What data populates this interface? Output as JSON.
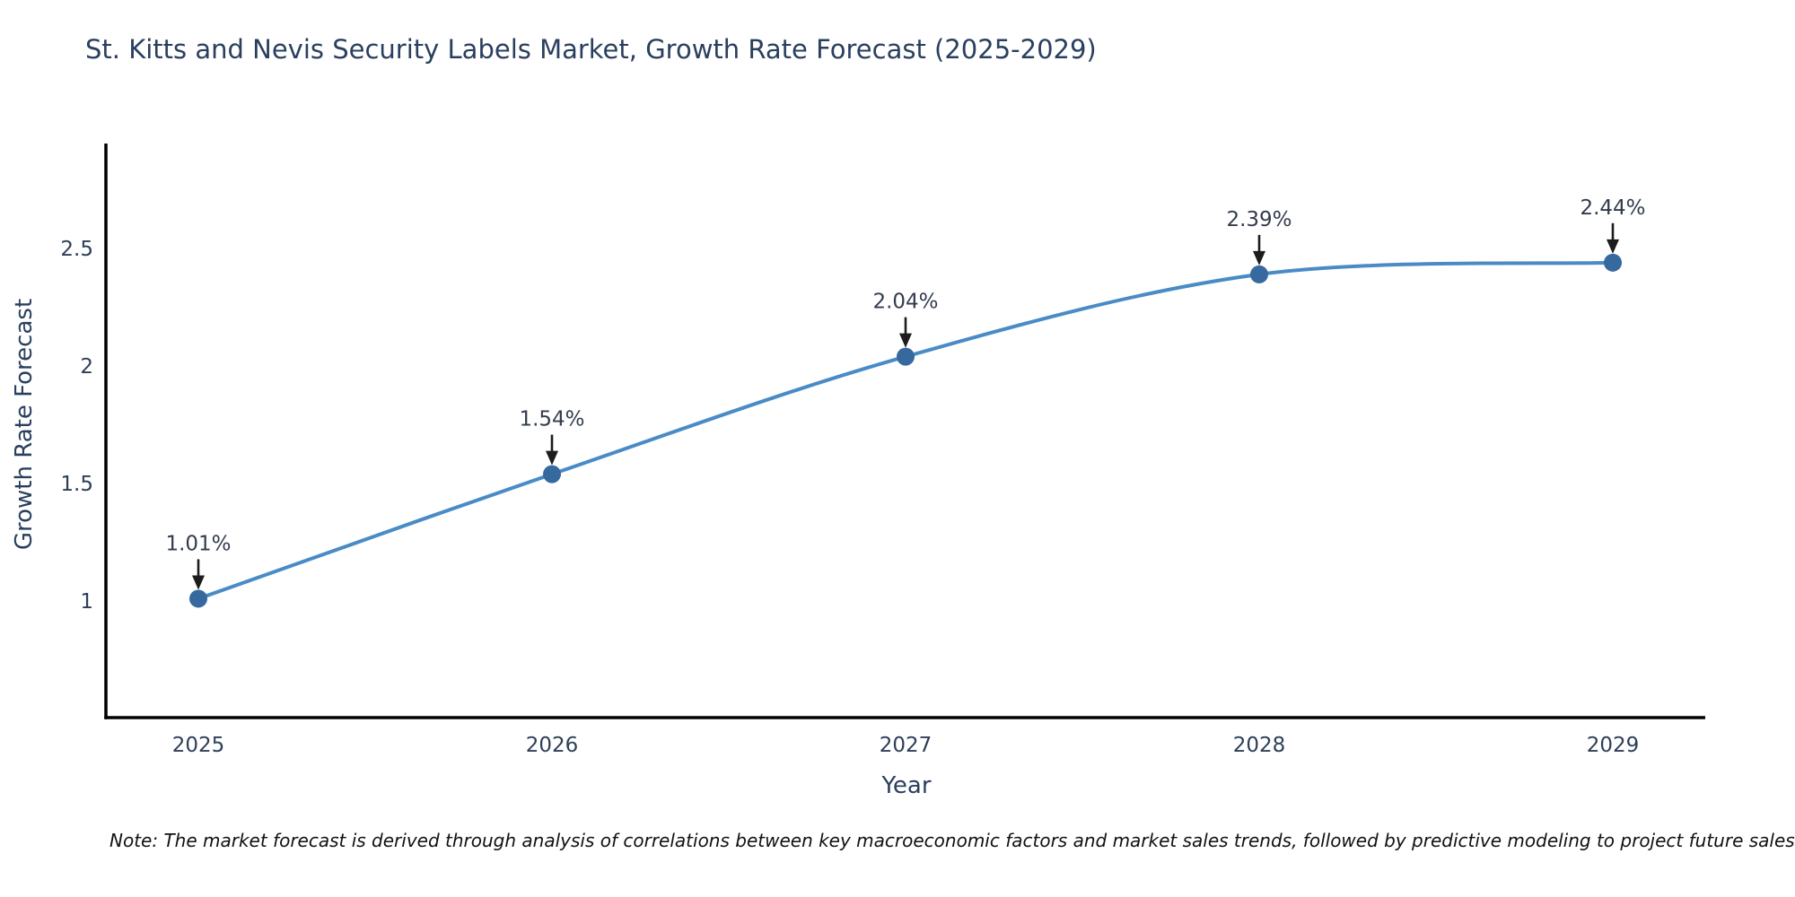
{
  "title": "St. Kitts and Nevis Security Labels Market, Growth Rate Forecast (2025-2029)",
  "note": "Note: The market forecast is derived through analysis of correlations between key macroeconomic factors and market sales trends, followed by predictive modeling to project future sales",
  "chart_data": {
    "type": "line",
    "x": [
      "2025",
      "2026",
      "2027",
      "2028",
      "2029"
    ],
    "series": [
      {
        "name": "Growth Rate Forecast",
        "values": [
          1.01,
          1.54,
          2.04,
          2.39,
          2.44
        ],
        "point_labels": [
          "1.01%",
          "1.54%",
          "2.04%",
          "2.39%",
          "2.44%"
        ]
      }
    ],
    "title": "St. Kitts and Nevis Security Labels Market, Growth Rate Forecast (2025-2029)",
    "xlabel": "Year",
    "ylabel": "Growth Rate Forecast",
    "yticks": [
      1,
      1.5,
      2,
      2.5
    ],
    "ylim": [
      0.504,
      2.947
    ],
    "line_shape": "spline",
    "grid": false,
    "legend": "none",
    "colors": {
      "line": "#4a8bc6",
      "marker": "#36699e",
      "axis_line": "#000000",
      "annotation_arrow": "#1c1c1c",
      "title_text": "#2a3f5f",
      "background": "#ffffff"
    }
  }
}
